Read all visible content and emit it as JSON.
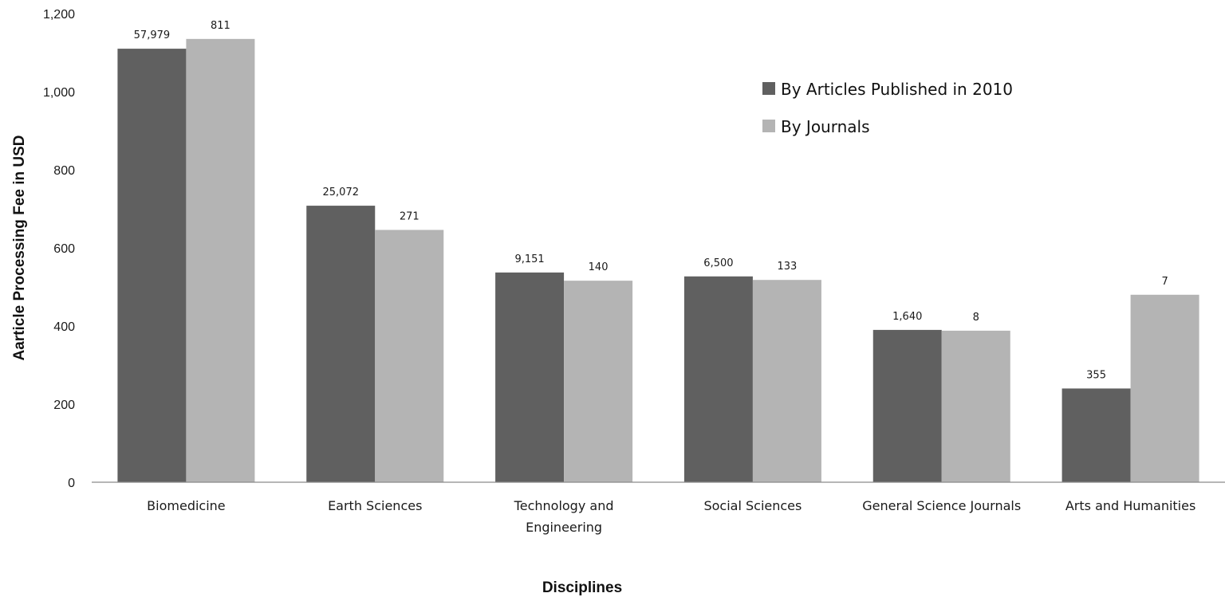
{
  "chart_data": {
    "type": "bar",
    "title": "",
    "xlabel": "Disciplines",
    "ylabel": "Aarticle Processing Fee in USD",
    "ylim": [
      0,
      1200
    ],
    "yticks": [
      0,
      200,
      400,
      600,
      800,
      1000,
      1200
    ],
    "ytick_labels": [
      "0",
      "200",
      "400",
      "600",
      "800",
      "1,000",
      "1,200"
    ],
    "categories": [
      [
        "Biomedicine"
      ],
      [
        "Earth Sciences"
      ],
      [
        "Technology and",
        "Engineering"
      ],
      [
        "Social Sciences"
      ],
      [
        "General Science Journals"
      ],
      [
        "Arts and Humanities"
      ]
    ],
    "series": [
      {
        "name": "By Articles Published in 2010",
        "color": "#606060",
        "values": [
          1110,
          708,
          537,
          527,
          390,
          240
        ],
        "data_labels": [
          "57,979",
          "25,072",
          "9,151",
          "6,500",
          "1,640",
          "355"
        ]
      },
      {
        "name": "By Journals",
        "color": "#b4b4b4",
        "values": [
          1135,
          646,
          516,
          518,
          388,
          480
        ],
        "data_labels": [
          "811",
          "271",
          "140",
          "133",
          "8",
          "7"
        ]
      }
    ],
    "grid": false,
    "legend_position": "top-right"
  }
}
